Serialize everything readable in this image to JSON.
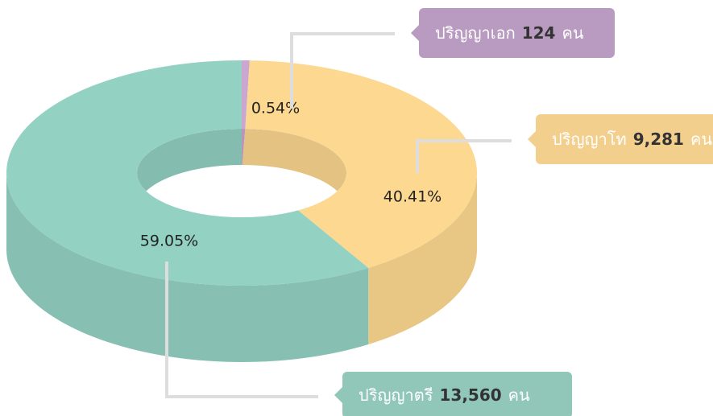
{
  "chart_data": {
    "type": "donut3d",
    "categories": [
      "ปริญญาเอก",
      "ปริญญาโท",
      "ปริญญาตรี"
    ],
    "values": [
      0.54,
      40.41,
      59.05
    ],
    "value_labels": [
      "0.54%",
      "40.41%",
      "59.05%"
    ],
    "counts": [
      124,
      9281,
      13560
    ],
    "count_labels": [
      "124",
      "9,281",
      "13,560"
    ],
    "unit": "คน",
    "colors": [
      "#cba6d1",
      "#fcd890",
      "#93d1c3"
    ]
  }
}
